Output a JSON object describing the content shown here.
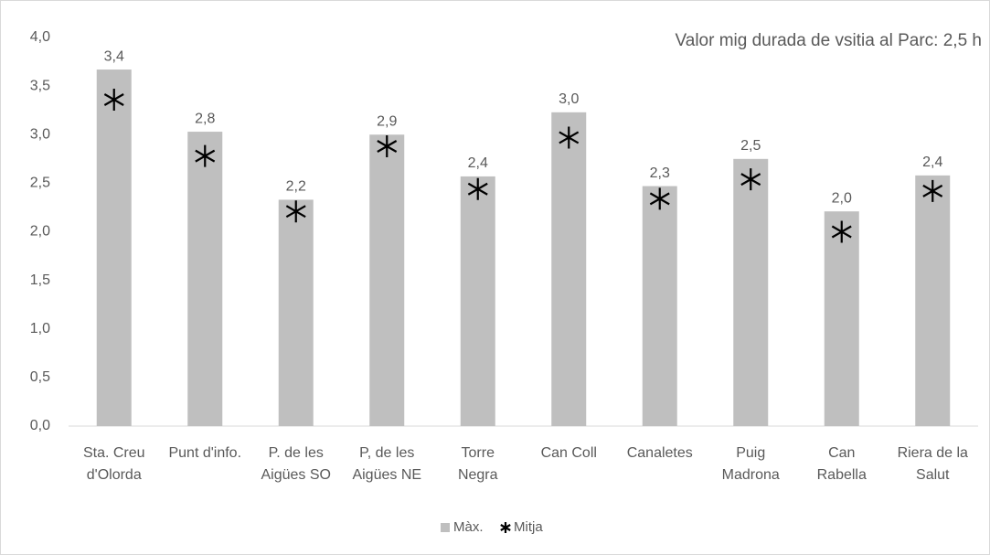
{
  "chart_data": {
    "type": "bar",
    "title": "Valor mig durada de vsitia al Parc: 2,5 h",
    "categories": [
      "Sta. Creu d'Olorda",
      "Punt d'info.",
      "P. de les Aigües SO",
      "P, de les Aigües NE",
      "Torre Negra",
      "Can Coll",
      "Canaletes",
      "Puig Madrona",
      "Can Rabella",
      "Riera de la Salut"
    ],
    "series": [
      {
        "name": "Màx.",
        "color": "#bfbfbf",
        "values": [
          3.67,
          3.03,
          2.33,
          3.0,
          2.57,
          3.23,
          2.47,
          2.75,
          2.21,
          2.58
        ]
      },
      {
        "name": "Mitja",
        "color": "#000000",
        "values": [
          3.36,
          2.78,
          2.21,
          2.88,
          2.44,
          2.97,
          2.34,
          2.54,
          2.0,
          2.42
        ],
        "value_labels": [
          "3,4",
          "2,8",
          "2,2",
          "2,9",
          "2,4",
          "3,0",
          "2,3",
          "2,5",
          "2,0",
          "2,4"
        ]
      }
    ],
    "ylim": [
      0,
      4
    ],
    "yticks": [
      {
        "value": 0,
        "label": "0,0"
      },
      {
        "value": 0.5,
        "label": "0,5"
      },
      {
        "value": 1,
        "label": "1,0"
      },
      {
        "value": 1.5,
        "label": "1,5"
      },
      {
        "value": 2,
        "label": "2,0"
      },
      {
        "value": 2.5,
        "label": "2,5"
      },
      {
        "value": 3,
        "label": "3,0"
      },
      {
        "value": 3.5,
        "label": "3,5"
      },
      {
        "value": 4,
        "label": "4,0"
      }
    ],
    "grid": false,
    "legend": "bottom"
  }
}
